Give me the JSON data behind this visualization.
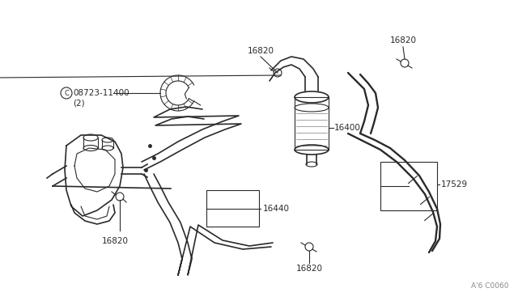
{
  "bg_color": "#ffffff",
  "line_color": "#2a2a2a",
  "text_color": "#2a2a2a",
  "diagram_code": "A'6 C0060",
  "figsize": [
    6.4,
    3.72
  ],
  "dpi": 100
}
